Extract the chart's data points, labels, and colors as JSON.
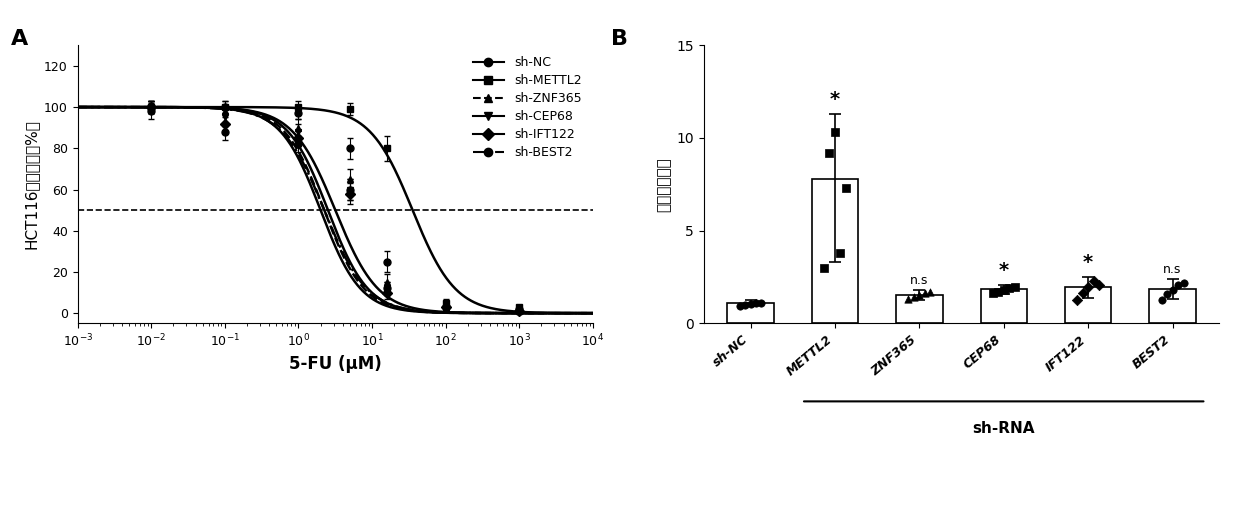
{
  "panel_A": {
    "title": "A",
    "xlabel": "5-FU (μM)",
    "ylabel": "HCT116细胞活力（%）",
    "xlim_log": [
      -3,
      4
    ],
    "ylim": [
      -5,
      130
    ],
    "yticks": [
      0,
      20,
      40,
      60,
      80,
      100,
      120
    ],
    "dashed_y": 50,
    "curves": [
      {
        "label": "sh-NC",
        "ic50_log": 0.5,
        "hill": 1.5,
        "linestyle": "-",
        "marker": "o",
        "data_x_log": [
          -2.0,
          -1.0,
          0.0,
          0.7,
          1.2,
          2.0,
          3.0
        ],
        "data_y": [
          100,
          100,
          97,
          80,
          25,
          3,
          2
        ],
        "data_yerr": [
          3,
          3,
          3,
          5,
          5,
          2,
          1
        ]
      },
      {
        "label": "sh-METTL2",
        "ic50_log": 1.55,
        "hill": 1.5,
        "linestyle": "-",
        "marker": "s",
        "data_x_log": [
          -2.0,
          -1.0,
          0.0,
          0.7,
          1.2,
          2.0,
          3.0
        ],
        "data_y": [
          100,
          100,
          100,
          99,
          80,
          5,
          3
        ],
        "data_yerr": [
          3,
          3,
          3,
          3,
          6,
          2,
          1
        ]
      },
      {
        "label": "sh-ZNF365",
        "ic50_log": 0.35,
        "hill": 1.6,
        "linestyle": "--",
        "marker": "^",
        "data_x_log": [
          -2.0,
          -1.0,
          0.0,
          0.7,
          1.2,
          2.0,
          3.0
        ],
        "data_y": [
          100,
          98,
          90,
          65,
          15,
          3,
          1
        ],
        "data_yerr": [
          3,
          3,
          4,
          5,
          4,
          2,
          1
        ]
      },
      {
        "label": "sh-CEP68",
        "ic50_log": 0.4,
        "hill": 1.6,
        "linestyle": "-",
        "marker": "v",
        "data_x_log": [
          -2.0,
          -1.0,
          0.0,
          0.7,
          1.2,
          2.0,
          3.0
        ],
        "data_y": [
          100,
          95,
          88,
          60,
          12,
          3,
          1
        ],
        "data_yerr": [
          3,
          4,
          4,
          5,
          3,
          2,
          1
        ]
      },
      {
        "label": "sh-IFT122",
        "ic50_log": 0.3,
        "hill": 1.6,
        "linestyle": "-",
        "marker": "D",
        "data_x_log": [
          -2.0,
          -1.0,
          0.0,
          0.7,
          1.2,
          2.0,
          3.0
        ],
        "data_y": [
          100,
          92,
          85,
          58,
          10,
          3,
          1
        ],
        "data_yerr": [
          3,
          4,
          4,
          5,
          3,
          2,
          1
        ]
      },
      {
        "label": "sh-BEST2",
        "ic50_log": 0.35,
        "hill": 1.5,
        "linestyle": "-.",
        "marker": "o",
        "data_x_log": [
          -2.0,
          -1.0,
          0.0,
          0.7,
          1.2,
          2.0,
          3.0
        ],
        "data_y": [
          98,
          88,
          82,
          60,
          12,
          3,
          1
        ],
        "data_yerr": [
          4,
          4,
          4,
          5,
          3,
          2,
          1
        ]
      }
    ]
  },
  "panel_B": {
    "title": "B",
    "xlabel_bracket": "sh-RNA",
    "ylabel": "相对耐药指数",
    "ylim": [
      0,
      15
    ],
    "yticks": [
      0,
      5,
      10,
      15
    ],
    "categories": [
      "sh-NC",
      "METTL2",
      "ZNF365",
      "CEP68",
      "IFT122",
      "BEST2"
    ],
    "bar_heights": [
      1.1,
      7.8,
      1.55,
      1.85,
      1.95,
      1.85
    ],
    "bar_errors_upper": [
      0.18,
      3.5,
      0.28,
      0.25,
      0.55,
      0.55
    ],
    "bar_errors_lower": [
      0.18,
      4.5,
      0.28,
      0.25,
      0.55,
      0.55
    ],
    "significance": [
      "",
      "*",
      "n.s",
      "*",
      "*",
      "n.s"
    ],
    "scatter_data": [
      [
        0.93,
        0.98,
        1.03,
        1.08,
        1.12
      ],
      [
        3.0,
        9.2,
        10.3,
        3.8,
        7.3
      ],
      [
        1.3,
        1.45,
        1.55,
        1.65,
        1.72
      ],
      [
        1.62,
        1.72,
        1.83,
        1.92,
        1.98
      ],
      [
        1.25,
        1.65,
        1.95,
        2.28,
        2.08
      ],
      [
        1.28,
        1.6,
        1.82,
        2.08,
        2.18
      ]
    ],
    "scatter_markers": [
      "o",
      "s",
      "^",
      "s",
      "D",
      "o"
    ],
    "bar_color": "white",
    "bar_edgecolor": "black",
    "scatter_color": "black"
  }
}
